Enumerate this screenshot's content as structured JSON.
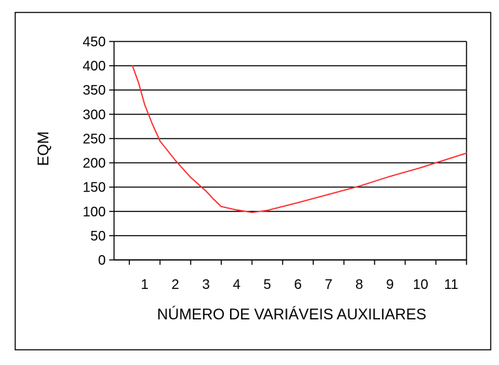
{
  "chart_data": {
    "type": "line",
    "title": "",
    "xlabel": "NÚMERO DE VARIÁVEIS AUXILIARES",
    "ylabel": "EQM",
    "xlim": [
      0,
      11.5
    ],
    "ylim": [
      0,
      450
    ],
    "xticks": [
      1,
      2,
      3,
      4,
      5,
      6,
      7,
      8,
      9,
      10,
      11
    ],
    "yticks": [
      0,
      50,
      100,
      150,
      200,
      250,
      300,
      350,
      400,
      450
    ],
    "grid": "horizontal",
    "legend": "none",
    "series": [
      {
        "color": "#ff2a2a",
        "points": [
          [
            0.6,
            400
          ],
          [
            0.8,
            365
          ],
          [
            1.0,
            320
          ],
          [
            1.25,
            280
          ],
          [
            1.5,
            245
          ],
          [
            2.0,
            205
          ],
          [
            2.5,
            170
          ],
          [
            3.0,
            142
          ],
          [
            3.25,
            125
          ],
          [
            3.5,
            110
          ],
          [
            4.0,
            103
          ],
          [
            4.5,
            98
          ],
          [
            5.0,
            102
          ],
          [
            6.0,
            118
          ],
          [
            7.0,
            135
          ],
          [
            8.0,
            152
          ],
          [
            9.0,
            172
          ],
          [
            10.0,
            190
          ],
          [
            11.0,
            210
          ],
          [
            11.5,
            220
          ]
        ]
      }
    ]
  }
}
